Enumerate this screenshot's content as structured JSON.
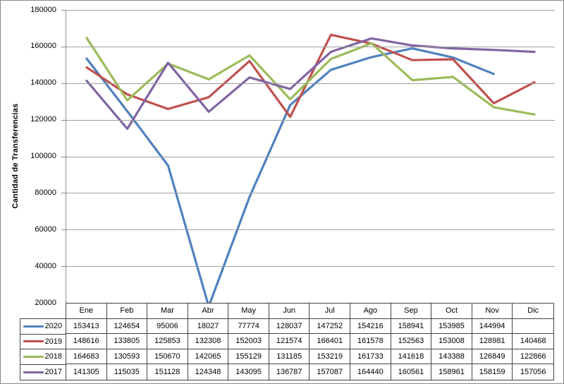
{
  "chart_data": {
    "type": "line",
    "title": "",
    "xlabel": "",
    "ylabel": "Cantidad de Transferencias",
    "ylim": [
      20000,
      180000
    ],
    "yticks": [
      180000,
      160000,
      140000,
      120000,
      100000,
      80000,
      60000,
      40000,
      20000
    ],
    "grid": true,
    "legend_position": "data-table-left",
    "categories": [
      "Ene",
      "Feb",
      "Mar",
      "Abr",
      "May",
      "Jun",
      "Jul",
      "Ago",
      "Sep",
      "Oct",
      "Nov",
      "Dic"
    ],
    "series": [
      {
        "name": "2020",
        "color": "#4F81BD",
        "values": [
          153413,
          124654,
          95006,
          18027,
          77774,
          128037,
          147252,
          154216,
          158941,
          153985,
          144994,
          null
        ]
      },
      {
        "name": "2019",
        "color": "#C0504D",
        "values": [
          148616,
          133805,
          125853,
          132308,
          152003,
          121574,
          166401,
          161578,
          152563,
          153008,
          128981,
          140468
        ]
      },
      {
        "name": "2018",
        "color": "#9BBB59",
        "values": [
          164683,
          130593,
          150670,
          142065,
          155129,
          131185,
          153219,
          161733,
          141618,
          143388,
          126849,
          122866
        ]
      },
      {
        "name": "2017",
        "color": "#8064A2",
        "values": [
          141305,
          115035,
          151128,
          124348,
          143095,
          136787,
          157087,
          164440,
          160561,
          158961,
          158159,
          157056
        ]
      }
    ]
  }
}
